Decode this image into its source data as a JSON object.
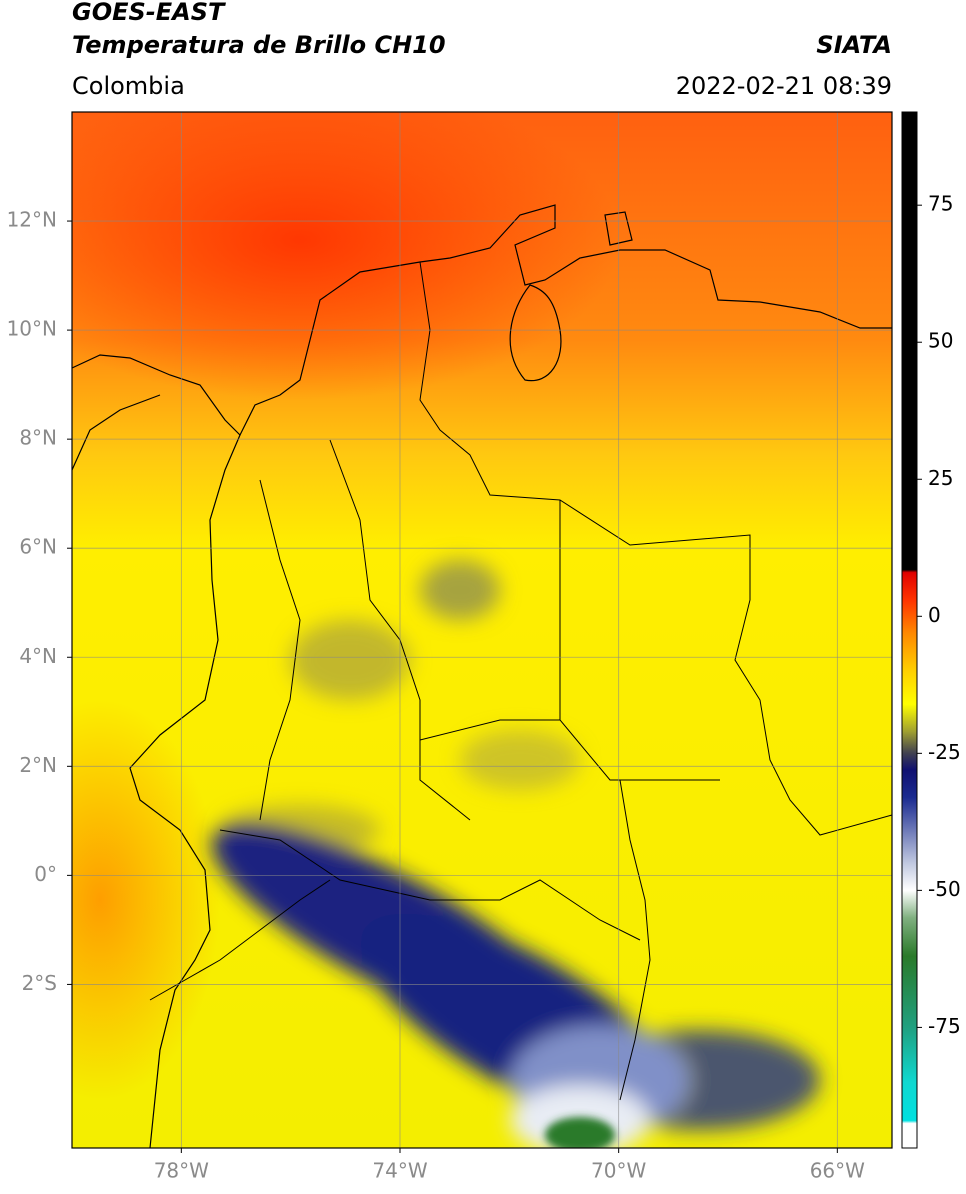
{
  "header": {
    "title": "GOES-EAST",
    "subtitle": "Temperatura de Brillo CH10",
    "source": "SIATA",
    "region": "Colombia",
    "datetime": "2022-02-21 08:39"
  },
  "map": {
    "xlim": [
      -80,
      -65
    ],
    "ylim": [
      -5,
      14
    ],
    "grid": true,
    "xticks": [
      {
        "value": -78,
        "label": "78°W"
      },
      {
        "value": -74,
        "label": "74°W"
      },
      {
        "value": -70,
        "label": "70°W"
      },
      {
        "value": -66,
        "label": "66°W"
      }
    ],
    "yticks": [
      {
        "value": 12,
        "label": "12°N"
      },
      {
        "value": 10,
        "label": "10°N"
      },
      {
        "value": 8,
        "label": "8°N"
      },
      {
        "value": 6,
        "label": "6°N"
      },
      {
        "value": 4,
        "label": "4°N"
      },
      {
        "value": 2,
        "label": "2°N"
      },
      {
        "value": 0,
        "label": "0°"
      },
      {
        "value": -2,
        "label": "2°S"
      }
    ]
  },
  "colorbar": {
    "lim": [
      -97,
      92
    ],
    "ticks": [
      75,
      50,
      25,
      0,
      -25,
      -50,
      -75
    ],
    "stops": [
      [
        92,
        "#000000"
      ],
      [
        8.5,
        "#000000"
      ],
      [
        8,
        "#e00000"
      ],
      [
        3,
        "#ff3300"
      ],
      [
        -3,
        "#ff8800"
      ],
      [
        -10,
        "#ffd000"
      ],
      [
        -16,
        "#ffff00"
      ],
      [
        -21,
        "#a0a030"
      ],
      [
        -25,
        "#404050"
      ],
      [
        -28,
        "#101070"
      ],
      [
        -33,
        "#1a2a90"
      ],
      [
        -45,
        "#c0c8e0"
      ],
      [
        -50,
        "#ffffff"
      ],
      [
        -55,
        "#80b080"
      ],
      [
        -62,
        "#2a7a2a"
      ],
      [
        -75,
        "#20a080"
      ],
      [
        -85,
        "#10d8d0"
      ],
      [
        -92,
        "#00e0e0"
      ],
      [
        -92.5,
        "#ffffff"
      ],
      [
        -97,
        "#ffffff"
      ]
    ]
  }
}
